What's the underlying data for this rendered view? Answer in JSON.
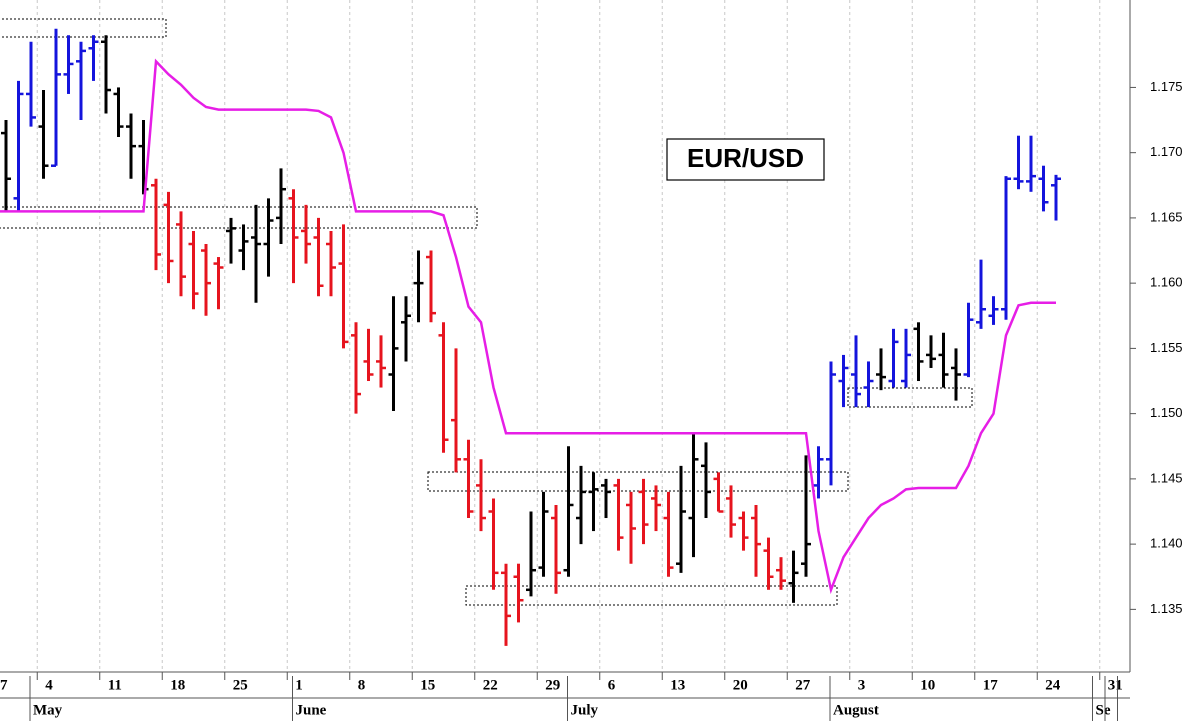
{
  "chart_data": {
    "type": "ohlc",
    "title": "EUR/USD",
    "categories": [
      "7",
      null,
      null,
      null,
      null,
      "4",
      null,
      null,
      null,
      null,
      "11",
      null,
      null,
      null,
      null,
      "18",
      null,
      null,
      null,
      null,
      "25",
      null,
      null,
      null,
      null,
      "1",
      null,
      null,
      null,
      null,
      "8",
      null,
      null,
      null,
      null,
      "15",
      null,
      null,
      null,
      null,
      "22",
      null,
      null,
      null,
      null,
      "29",
      null,
      null,
      null,
      null,
      "6",
      null,
      null,
      null,
      null,
      "13",
      null,
      null,
      null,
      null,
      "20",
      null,
      null,
      null,
      null,
      "27",
      null,
      null,
      null,
      null,
      "3",
      null,
      null,
      null,
      null,
      "10",
      null,
      null,
      null,
      null,
      "17",
      null,
      null,
      null,
      null,
      "24",
      null,
      null,
      null,
      null,
      "31",
      null
    ],
    "month_labels": [
      null,
      null,
      null,
      null,
      "May",
      null,
      null,
      null,
      null,
      null,
      null,
      null,
      null,
      null,
      null,
      null,
      null,
      null,
      null,
      null,
      null,
      null,
      null,
      null,
      null,
      "June",
      null,
      null,
      null,
      null,
      null,
      null,
      null,
      null,
      null,
      null,
      null,
      null,
      null,
      null,
      null,
      null,
      null,
      null,
      null,
      null,
      null,
      "July",
      null,
      null,
      null,
      null,
      null,
      null,
      null,
      null,
      null,
      null,
      null,
      null,
      null,
      null,
      null,
      null,
      null,
      null,
      null,
      null,
      "August",
      null,
      null,
      null,
      null,
      null,
      null,
      null,
      null,
      null,
      null,
      null,
      null,
      null,
      null,
      null,
      null,
      null,
      null,
      null,
      null,
      "Se"
    ],
    "open": [
      null,
      null,
      1.1715,
      1.1665,
      1.1745,
      1.172,
      1.169,
      1.176,
      1.177,
      1.178,
      1.1785,
      1.1745,
      1.172,
      1.1705,
      1.1675,
      1.166,
      1.1645,
      1.163,
      1.1625,
      1.1615,
      1.164,
      1.1625,
      1.1635,
      1.163,
      1.165,
      1.1665,
      1.164,
      1.1635,
      1.163,
      1.1615,
      1.156,
      1.154,
      1.154,
      1.153,
      1.157,
      1.16,
      1.162,
      1.156,
      1.1495,
      1.1465,
      1.1445,
      1.1425,
      1.1378,
      1.1375,
      1.1365,
      1.1382,
      1.142,
      1.138,
      1.142,
      1.144,
      1.1445,
      1.1445,
      1.143,
      1.144,
      1.1435,
      1.142,
      1.1385,
      1.142,
      1.146,
      1.145,
      1.1435,
      1.142,
      1.142,
      1.1395,
      1.138,
      1.137,
      1.1385,
      1.1445,
      1.1465,
      1.1525,
      1.153,
      1.152,
      1.153,
      1.1525,
      1.1525,
      1.1565,
      1.1545,
      1.1545,
      1.1535,
      1.153,
      1.157,
      1.1575,
      1.158,
      1.168,
      1.1678,
      1.168,
      1.1675,
      null,
      null,
      null,
      null,
      null
    ],
    "high": [
      null,
      null,
      1.1725,
      1.1755,
      1.1785,
      1.1748,
      1.1795,
      1.179,
      1.1785,
      1.179,
      1.179,
      1.175,
      1.173,
      1.1725,
      1.168,
      1.167,
      1.1655,
      1.164,
      1.163,
      1.162,
      1.165,
      1.1645,
      1.166,
      1.1665,
      1.1688,
      1.1672,
      1.166,
      1.165,
      1.164,
      1.1645,
      1.157,
      1.1565,
      1.156,
      1.159,
      1.159,
      1.1625,
      1.1625,
      1.157,
      1.155,
      1.148,
      1.1465,
      1.1435,
      1.1385,
      1.1385,
      1.1425,
      1.144,
      1.143,
      1.1475,
      1.146,
      1.1455,
      1.145,
      1.145,
      1.144,
      1.145,
      1.1445,
      1.144,
      1.146,
      1.1485,
      1.1478,
      1.1455,
      1.1445,
      1.1425,
      1.143,
      1.1405,
      1.139,
      1.1395,
      1.1468,
      1.1475,
      1.154,
      1.1545,
      1.156,
      1.154,
      1.155,
      1.1565,
      1.1565,
      1.157,
      1.156,
      1.1562,
      1.155,
      1.1585,
      1.1618,
      1.159,
      1.1682,
      1.1713,
      1.1713,
      1.169,
      1.1683,
      null,
      null,
      null,
      null,
      null
    ],
    "low": [
      null,
      null,
      1.1655,
      1.1655,
      1.172,
      1.168,
      1.169,
      1.1745,
      1.1725,
      1.1755,
      1.173,
      1.1712,
      1.168,
      1.1668,
      1.161,
      1.16,
      1.159,
      1.158,
      1.1575,
      1.158,
      1.1615,
      1.161,
      1.1585,
      1.1605,
      1.163,
      1.16,
      1.1615,
      1.159,
      1.159,
      1.155,
      1.15,
      1.1525,
      1.152,
      1.1502,
      1.154,
      1.157,
      1.157,
      1.147,
      1.1455,
      1.142,
      1.141,
      1.1365,
      1.1322,
      1.134,
      1.136,
      1.1375,
      1.1362,
      1.1375,
      1.14,
      1.141,
      1.142,
      1.1395,
      1.1385,
      1.14,
      1.141,
      1.1375,
      1.1378,
      1.139,
      1.142,
      1.1425,
      1.1405,
      1.1395,
      1.1375,
      1.1365,
      1.1365,
      1.1355,
      1.1375,
      1.1435,
      1.1445,
      1.1505,
      1.1505,
      1.1505,
      1.1518,
      1.152,
      1.152,
      1.1525,
      1.1535,
      1.152,
      1.151,
      1.1528,
      1.1565,
      1.1568,
      1.1572,
      1.1672,
      1.167,
      1.1655,
      1.1648,
      null,
      null,
      null,
      null,
      null
    ],
    "close": [
      null,
      null,
      1.168,
      1.1745,
      1.1727,
      1.169,
      1.176,
      1.1768,
      1.1778,
      1.1785,
      1.1748,
      1.172,
      1.1705,
      1.1672,
      1.1622,
      1.1617,
      1.1605,
      1.1592,
      1.16,
      1.1612,
      1.1642,
      1.1632,
      1.163,
      1.1648,
      1.1672,
      1.1635,
      1.163,
      1.1598,
      1.1612,
      1.1555,
      1.1515,
      1.153,
      1.1535,
      1.155,
      1.1575,
      1.16,
      1.1577,
      1.148,
      1.1465,
      1.1425,
      1.142,
      1.1378,
      1.1345,
      1.1357,
      1.138,
      1.1425,
      1.1378,
      1.143,
      1.144,
      1.1442,
      1.144,
      1.1405,
      1.1412,
      1.1415,
      1.143,
      1.1382,
      1.1425,
      1.1465,
      1.144,
      1.1425,
      1.1415,
      1.1405,
      1.14,
      1.1375,
      1.1372,
      1.1378,
      1.14,
      1.1465,
      1.153,
      1.1535,
      1.1515,
      1.1525,
      1.1528,
      1.1555,
      1.1545,
      1.154,
      1.1542,
      1.153,
      1.153,
      1.1572,
      1.158,
      1.158,
      1.168,
      1.1678,
      1.1682,
      1.1662,
      1.168,
      null,
      null,
      null,
      null,
      null
    ],
    "bar_colors": [
      null,
      null,
      "#000000",
      "#1414dc",
      "#1414dc",
      "#000000",
      "#1414dc",
      "#1414dc",
      "#1414dc",
      "#1414dc",
      "#000000",
      "#000000",
      "#000000",
      "#000000",
      "#e6141e",
      "#e6141e",
      "#e6141e",
      "#e6141e",
      "#e6141e",
      "#e6141e",
      "#000000",
      "#000000",
      "#000000",
      "#000000",
      "#000000",
      "#e6141e",
      "#e6141e",
      "#e6141e",
      "#e6141e",
      "#e6141e",
      "#e6141e",
      "#e6141e",
      "#e6141e",
      "#000000",
      "#000000",
      "#000000",
      "#e6141e",
      "#e6141e",
      "#e6141e",
      "#e6141e",
      "#e6141e",
      "#e6141e",
      "#e6141e",
      "#e6141e",
      "#000000",
      "#000000",
      "#e6141e",
      "#000000",
      "#000000",
      "#000000",
      "#000000",
      "#e6141e",
      "#e6141e",
      "#e6141e",
      "#e6141e",
      "#e6141e",
      "#000000",
      "#000000",
      "#000000",
      "#e6141e",
      "#e6141e",
      "#e6141e",
      "#e6141e",
      "#e6141e",
      "#e6141e",
      "#000000",
      "#000000",
      "#1414dc",
      "#1414dc",
      "#1414dc",
      "#1414dc",
      "#1414dc",
      "#000000",
      "#1414dc",
      "#1414dc",
      "#000000",
      "#000000",
      "#000000",
      "#000000",
      "#1414dc",
      "#1414dc",
      "#1414dc",
      "#1414dc",
      "#1414dc",
      "#1414dc",
      "#1414dc",
      "#1414dc",
      null,
      null,
      null,
      null,
      null
    ],
    "line": {
      "color": "#e61ee6",
      "values": [
        1.1655,
        1.1655,
        1.1655,
        1.1655,
        1.1655,
        1.1655,
        1.1655,
        1.1655,
        1.1655,
        1.1655,
        1.1655,
        1.1655,
        1.1655,
        1.1655,
        1.177,
        1.176,
        1.1752,
        1.1742,
        1.1735,
        1.1733,
        1.1733,
        1.1733,
        1.1733,
        1.1733,
        1.1733,
        1.1733,
        1.1733,
        1.1732,
        1.1727,
        1.17,
        1.1655,
        1.1655,
        1.1655,
        1.1655,
        1.1655,
        1.1655,
        1.1655,
        1.1652,
        1.162,
        1.1582,
        1.157,
        1.152,
        1.1485,
        1.1485,
        1.1485,
        1.1485,
        1.1485,
        1.1485,
        1.1485,
        1.1485,
        1.1485,
        1.1485,
        1.1485,
        1.1485,
        1.1485,
        1.1485,
        1.1485,
        1.1485,
        1.1485,
        1.1485,
        1.1485,
        1.1485,
        1.1485,
        1.1485,
        1.1485,
        1.1485,
        1.1485,
        1.141,
        1.1365,
        1.139,
        1.1405,
        1.142,
        1.143,
        1.1435,
        1.1442,
        1.1443,
        1.1443,
        1.1443,
        1.1443,
        1.146,
        1.1485,
        1.15,
        1.156,
        1.1583,
        1.1585,
        1.1585,
        1.1585,
        null,
        null,
        null,
        null,
        null
      ]
    },
    "ylim": [
      1.1302,
      1.1817
    ],
    "yticks": [
      1.135,
      {
        "value": 1.14,
        "label": "1.140"
      },
      1.145,
      {
        "value": 1.15,
        "label": "1.150"
      },
      1.155,
      {
        "value": 1.16,
        "label": "1.160"
      },
      1.165,
      {
        "value": 1.17,
        "label": "1.170"
      },
      1.175
    ],
    "grid": "x"
  }
}
